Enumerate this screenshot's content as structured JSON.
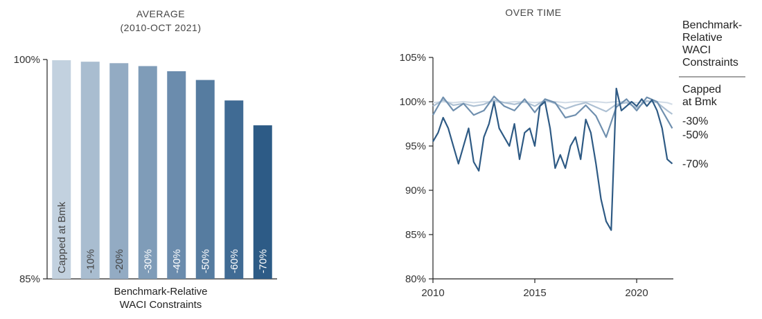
{
  "chart_data": [
    {
      "type": "bar",
      "title": "AVERAGE",
      "subtitle": "(2010-OCT 2021)",
      "xlabel": [
        "Benchmark-Relative",
        "WACI Constraints"
      ],
      "ylabel": "",
      "ylim": [
        85,
        100
      ],
      "yticks": [
        {
          "value": 100,
          "label": "100%"
        },
        {
          "value": 85,
          "label": "85%"
        }
      ],
      "categories": [
        "Capped at Bmk",
        "-10%",
        "-20%",
        "-30%",
        "-40%",
        "-50%",
        "-60%",
        "-70%"
      ],
      "values": [
        99.95,
        99.85,
        99.75,
        99.55,
        99.2,
        98.6,
        97.2,
        95.5
      ],
      "colors": [
        "#c2d1df",
        "#a9bdd0",
        "#93abc3",
        "#7f9cb8",
        "#6b8cad",
        "#567ca0",
        "#406b94",
        "#2d5b86"
      ],
      "label_colors": [
        "#444444",
        "#444444",
        "#444444",
        "#ffffff",
        "#ffffff",
        "#ffffff",
        "#ffffff",
        "#ffffff"
      ]
    },
    {
      "type": "line",
      "title": "OVER TIME",
      "xlim": [
        2010,
        2021.8
      ],
      "ylim": [
        80,
        105
      ],
      "xticks": [
        2010,
        2015,
        2020
      ],
      "yticks": [
        {
          "value": 105,
          "label": "105%"
        },
        {
          "value": 100,
          "label": "100%"
        },
        {
          "value": 95,
          "label": "95%"
        },
        {
          "value": 90,
          "label": "90%"
        },
        {
          "value": 85,
          "label": "85%"
        },
        {
          "value": 80,
          "label": "80%"
        }
      ],
      "legend_title": [
        "Benchmark-",
        "Relative",
        "WACI",
        "Constraints"
      ],
      "series": [
        {
          "name": "Capped at Bmk",
          "color": "#d3dde7",
          "x": [
            2010,
            2010.5,
            2011,
            2011.5,
            2012,
            2012.5,
            2013,
            2013.5,
            2014,
            2014.5,
            2015,
            2015.5,
            2016,
            2016.5,
            2017,
            2017.5,
            2018,
            2018.5,
            2019,
            2019.5,
            2020,
            2020.5,
            2021,
            2021.5,
            2021.75
          ],
          "y": [
            99.9,
            100.0,
            99.9,
            100.0,
            99.9,
            100.0,
            100.0,
            99.9,
            100.0,
            100.0,
            99.9,
            100.0,
            100.0,
            99.9,
            100.0,
            100.0,
            100.0,
            99.9,
            100.0,
            100.0,
            99.9,
            100.0,
            100.0,
            99.9,
            99.7
          ]
        },
        {
          "name": "-30%",
          "color": "#adc0d3",
          "x": [
            2010,
            2010.5,
            2011,
            2011.5,
            2012,
            2012.5,
            2013,
            2013.5,
            2014,
            2014.5,
            2015,
            2015.5,
            2016,
            2016.5,
            2017,
            2017.5,
            2018,
            2018.5,
            2019,
            2019.5,
            2020,
            2020.5,
            2021,
            2021.5,
            2021.75
          ],
          "y": [
            99.5,
            100.2,
            99.6,
            99.8,
            99.5,
            99.7,
            100.2,
            99.9,
            99.7,
            100.0,
            99.5,
            100.2,
            99.8,
            99.2,
            99.6,
            99.9,
            99.4,
            98.9,
            99.7,
            99.9,
            99.3,
            100.1,
            99.9,
            99.0,
            98.6
          ]
        },
        {
          "name": "-50%",
          "color": "#6f8fae",
          "x": [
            2010,
            2010.5,
            2011,
            2011.5,
            2012,
            2012.5,
            2013,
            2013.5,
            2014,
            2014.5,
            2015,
            2015.5,
            2016,
            2016.5,
            2017,
            2017.5,
            2018,
            2018.5,
            2019,
            2019.5,
            2020,
            2020.5,
            2021,
            2021.5,
            2021.75
          ],
          "y": [
            98.5,
            100.5,
            99.0,
            99.8,
            98.5,
            99.0,
            100.6,
            99.5,
            99.0,
            100.3,
            98.8,
            100.3,
            99.9,
            98.2,
            98.5,
            99.6,
            98.4,
            96.0,
            99.4,
            100.3,
            99.0,
            100.5,
            100.0,
            98.0,
            97.0
          ]
        },
        {
          "name": "-70%",
          "color": "#2e5a84",
          "x": [
            2010,
            2010.25,
            2010.5,
            2010.75,
            2011,
            2011.25,
            2011.5,
            2011.75,
            2012,
            2012.25,
            2012.5,
            2012.75,
            2013,
            2013.25,
            2013.5,
            2013.75,
            2014,
            2014.25,
            2014.5,
            2014.75,
            2015,
            2015.25,
            2015.5,
            2015.75,
            2016,
            2016.25,
            2016.5,
            2016.75,
            2017,
            2017.25,
            2017.5,
            2017.75,
            2018,
            2018.25,
            2018.5,
            2018.75,
            2019,
            2019.25,
            2019.5,
            2019.75,
            2020,
            2020.25,
            2020.5,
            2020.75,
            2021,
            2021.25,
            2021.5,
            2021.75
          ],
          "y": [
            95.5,
            96.5,
            98.2,
            97.0,
            95.0,
            93.0,
            95.0,
            97.0,
            93.2,
            92.2,
            96.0,
            97.5,
            100.0,
            97.0,
            96.0,
            95.0,
            97.5,
            93.5,
            96.5,
            97.0,
            95.0,
            99.5,
            100.0,
            97.0,
            92.5,
            94.0,
            92.5,
            95.0,
            96.0,
            93.5,
            98.0,
            96.5,
            93.0,
            89.0,
            86.5,
            85.5,
            101.5,
            99.0,
            99.5,
            100.0,
            99.5,
            100.3,
            99.5,
            100.2,
            99.0,
            97.0,
            93.5,
            93.0
          ]
        }
      ],
      "legend": [
        {
          "label": [
            "Capped",
            "at Bmk"
          ],
          "series": "Capped at Bmk"
        },
        {
          "label": [
            "-30%"
          ],
          "series": "-30%"
        },
        {
          "label": [
            "-50%"
          ],
          "series": "-50%"
        },
        {
          "label": [
            "-70%"
          ],
          "series": "-70%"
        }
      ]
    }
  ]
}
